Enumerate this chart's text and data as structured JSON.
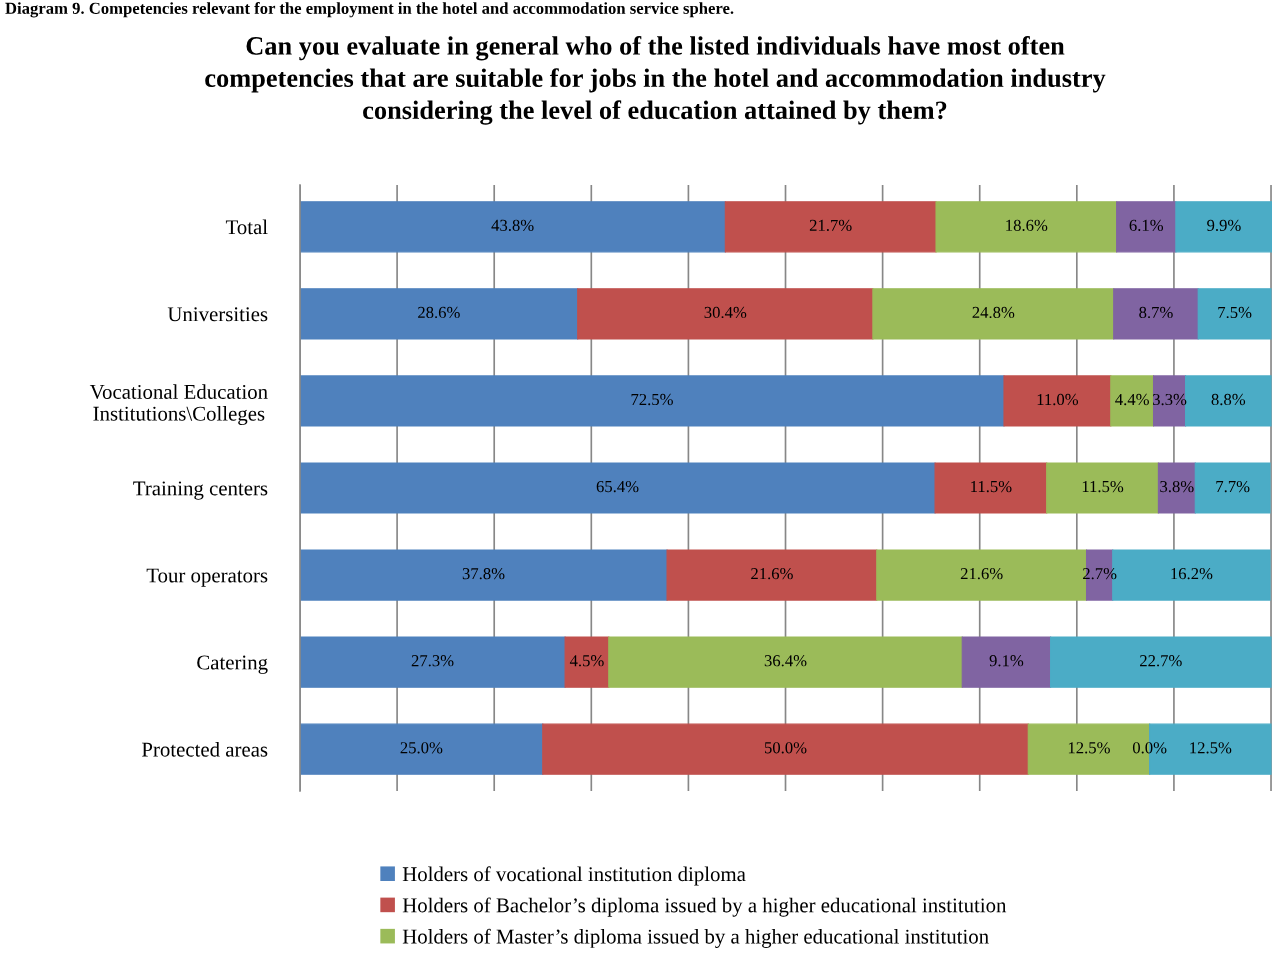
{
  "chart_data": {
    "type": "bar",
    "orientation": "horizontal",
    "stacked": true,
    "title": "Can you evaluate in general who of the listed individuals have most often\ncompetencies that are suitable for jobs in the hotel and accommodation industry\nconsidering the level of education attained by them?",
    "annotations": [
      "Diagram 9. Competencies relevant for the employment in the hotel and accommodation service sphere."
    ],
    "categories": [
      "Total",
      "Universities",
      "Vocational Education\nInstitutions\\Colleges",
      "Training centers",
      "Tour operators",
      "Catering",
      "Protected areas"
    ],
    "series": [
      {
        "name": "Holders of vocational institution diploma",
        "color": "#4f81bd",
        "values": [
          43.8,
          28.6,
          72.5,
          65.4,
          37.8,
          27.3,
          25.0
        ],
        "value_labels": [
          "43.8%",
          "28.6%",
          "72.5%",
          "65.4%",
          "37.8%",
          "27.3%",
          "25.0%"
        ]
      },
      {
        "name": "Holders of Bachelor’s diploma issued by a higher educational institution",
        "color": "#c0504d",
        "values": [
          21.7,
          30.4,
          11.0,
          11.5,
          21.6,
          4.5,
          50.0
        ],
        "value_labels": [
          "21.7%",
          "30.4%",
          "11.0%",
          "11.5%",
          "21.6%",
          "4.5%",
          "50.0%"
        ]
      },
      {
        "name": "Holders of Master’s diploma issued by a higher educational institution",
        "color": "#9bbb59",
        "values": [
          18.6,
          24.8,
          4.4,
          11.5,
          21.6,
          36.4,
          12.5
        ],
        "value_labels": [
          "18.6%",
          "24.8%",
          "4.4%",
          "11.5%",
          "21.6%",
          "36.4%",
          "12.5%"
        ]
      },
      {
        "color": "#8064a2",
        "values": [
          6.1,
          8.7,
          3.3,
          3.8,
          2.7,
          9.1,
          0.0
        ],
        "value_labels": [
          "6.1%",
          "8.7%",
          "3.3%",
          "3.8%",
          "2.7%",
          "9.1%",
          "0.0%"
        ]
      },
      {
        "color": "#4bacc6",
        "values": [
          9.9,
          7.5,
          8.8,
          7.7,
          16.2,
          22.7,
          12.5
        ],
        "value_labels": [
          "9.9%",
          "7.5%",
          "8.8%",
          "7.7%",
          "16.2%",
          "22.7%",
          "12.5%"
        ]
      }
    ],
    "xlim": [
      0,
      100.1
    ],
    "xticks": [
      {
        "value": 0,
        "label": null
      },
      {
        "value": 10,
        "label": null
      },
      {
        "value": 20,
        "label": null
      },
      {
        "value": 30,
        "label": null
      },
      {
        "value": 40,
        "label": null
      },
      {
        "value": 50,
        "label": null
      },
      {
        "value": 60,
        "label": null
      },
      {
        "value": 70,
        "label": null
      },
      {
        "value": 80,
        "label": null
      },
      {
        "value": 90,
        "label": null
      },
      {
        "value": 100,
        "label": null
      }
    ],
    "grid": "x",
    "legend": "bottom",
    "tick_labels": "y"
  }
}
